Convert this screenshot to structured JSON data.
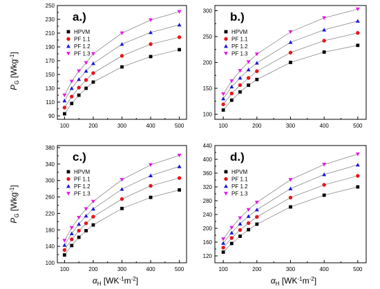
{
  "figure": {
    "y_axis_label": {
      "main": "P",
      "sub": "G",
      "unit": " [Wkg",
      "exp": "-1",
      "close": "]"
    },
    "x_axis_label": {
      "main": "α",
      "sub": "H",
      "unit": " [WK",
      "exp1": "-1",
      "mid": "m",
      "exp2": "-2",
      "close": "]"
    }
  },
  "colors": {
    "HPVM": "#000000",
    "PF 1.1": "#e8141c",
    "PF 1.2": "#1a1ad6",
    "PF 1.3": "#e61ae6"
  },
  "chart_data": [
    {
      "panel_label": "a.)",
      "type": "line",
      "x": [
        100,
        125,
        150,
        175,
        200,
        300,
        400,
        500
      ],
      "xlim": [
        75,
        525
      ],
      "xticks": [
        100,
        200,
        300,
        400,
        500
      ],
      "ylim": [
        85,
        250
      ],
      "yticks": [
        90,
        110,
        130,
        150,
        170,
        190,
        210,
        230,
        250
      ],
      "legend_position": "top-left",
      "series": [
        {
          "name": "HPVM",
          "marker": "square",
          "values": [
            93,
            108,
            120,
            130,
            139,
            161,
            176,
            186
          ]
        },
        {
          "name": "PF 1.1",
          "marker": "circle",
          "values": [
            102,
            118,
            131,
            142,
            152,
            177,
            194,
            204
          ]
        },
        {
          "name": "PF 1.2",
          "marker": "triangle-up",
          "values": [
            112,
            130,
            143,
            155,
            166,
            194,
            211,
            222
          ]
        },
        {
          "name": "PF 1.3",
          "marker": "triangle-down",
          "values": [
            120,
            140,
            155,
            167,
            180,
            210,
            229,
            241
          ]
        }
      ]
    },
    {
      "panel_label": "b.)",
      "type": "line",
      "x": [
        100,
        125,
        150,
        175,
        200,
        300,
        400,
        500
      ],
      "xlim": [
        75,
        525
      ],
      "xticks": [
        100,
        200,
        300,
        400,
        500
      ],
      "ylim": [
        90,
        310
      ],
      "yticks": [
        100,
        150,
        200,
        250,
        300
      ],
      "legend_position": "top-left",
      "series": [
        {
          "name": "HPVM",
          "marker": "square",
          "values": [
            108,
            127,
            143,
            156,
            167,
            200,
            220,
            233
          ]
        },
        {
          "name": "PF 1.1",
          "marker": "circle",
          "values": [
            119,
            140,
            156,
            170,
            183,
            219,
            242,
            257
          ]
        },
        {
          "name": "PF 1.2",
          "marker": "triangle-up",
          "values": [
            130,
            153,
            170,
            186,
            199,
            239,
            263,
            280
          ]
        },
        {
          "name": "PF 1.3",
          "marker": "triangle-down",
          "values": [
            139,
            164,
            184,
            201,
            216,
            259,
            286,
            303
          ]
        }
      ]
    },
    {
      "panel_label": "c.)",
      "type": "line",
      "x": [
        100,
        125,
        150,
        175,
        200,
        300,
        400,
        500
      ],
      "xlim": [
        75,
        525
      ],
      "xticks": [
        100,
        200,
        300,
        400,
        500
      ],
      "ylim": [
        100,
        385
      ],
      "yticks": [
        100,
        140,
        180,
        220,
        260,
        300,
        340,
        380
      ],
      "legend_position": "top-left",
      "series": [
        {
          "name": "HPVM",
          "marker": "square",
          "values": [
            119,
            142,
            162,
            178,
            192,
            232,
            259,
            277
          ]
        },
        {
          "name": "PF 1.1",
          "marker": "circle",
          "values": [
            131,
            157,
            178,
            196,
            212,
            255,
            287,
            306
          ]
        },
        {
          "name": "PF 1.2",
          "marker": "triangle-up",
          "values": [
            143,
            171,
            194,
            214,
            231,
            279,
            312,
            334
          ]
        },
        {
          "name": "PF 1.3",
          "marker": "triangle-down",
          "values": [
            154,
            185,
            210,
            231,
            249,
            302,
            338,
            361
          ]
        }
      ]
    },
    {
      "panel_label": "d.)",
      "type": "line",
      "x": [
        100,
        125,
        150,
        175,
        200,
        300,
        400,
        500
      ],
      "xlim": [
        75,
        525
      ],
      "xticks": [
        100,
        200,
        300,
        400,
        500
      ],
      "ylim": [
        100,
        440
      ],
      "yticks": [
        120,
        160,
        200,
        240,
        280,
        320,
        360,
        400,
        440
      ],
      "legend_position": "top-left",
      "series": [
        {
          "name": "HPVM",
          "marker": "square",
          "values": [
            131,
            156,
            177,
            196,
            212,
            262,
            296,
            320
          ]
        },
        {
          "name": "PF 1.1",
          "marker": "circle",
          "values": [
            144,
            172,
            195,
            215,
            233,
            289,
            326,
            352
          ]
        },
        {
          "name": "PF 1.2",
          "marker": "triangle-up",
          "values": [
            157,
            187,
            213,
            235,
            254,
            315,
            356,
            384
          ]
        },
        {
          "name": "PF 1.3",
          "marker": "triangle-down",
          "values": [
            169,
            202,
            230,
            254,
            275,
            341,
            385,
            415
          ]
        }
      ]
    }
  ]
}
